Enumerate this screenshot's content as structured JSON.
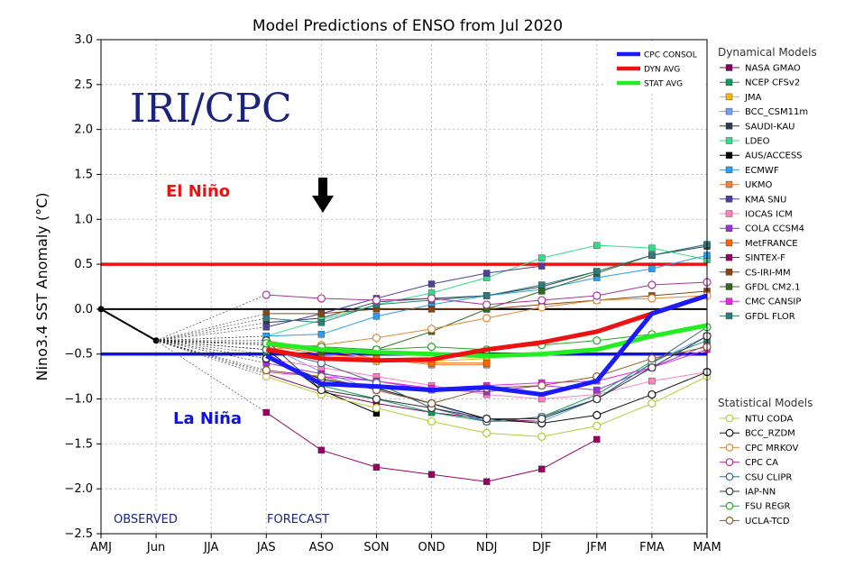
{
  "chart_data": {
    "type": "line",
    "title": "Model Predictions of ENSO from Jul 2020",
    "ylabel": "Nino3.4 SST Anomaly (°C)",
    "xlabel": "",
    "ylim": [
      -2.5,
      3.0
    ],
    "yticks": [
      -2.5,
      -2.0,
      -1.5,
      -1.0,
      -0.5,
      0.0,
      0.5,
      1.0,
      1.5,
      2.0,
      2.5,
      3.0
    ],
    "yticklabels": [
      "−2.5",
      "−2.0",
      "−1.5",
      "−1.0",
      "−0.5",
      "0.0",
      "0.5",
      "1.0",
      "1.5",
      "2.0",
      "2.5",
      "3.0"
    ],
    "categories": [
      "AMJ",
      "Jun",
      "JJA",
      "JAS",
      "ASO",
      "SON",
      "OND",
      "NDJ",
      "DJF",
      "JFM",
      "FMA",
      "MAM"
    ],
    "grid": true,
    "observed": {
      "x": [
        0,
        1
      ],
      "y": [
        0.0,
        -0.35
      ]
    },
    "reference_lines": [
      {
        "name": "el-nino-threshold",
        "y": 0.5,
        "color": "#ee1111"
      },
      {
        "name": "zero-line",
        "y": 0.0,
        "color": "#000000"
      },
      {
        "name": "la-nina-threshold",
        "y": -0.5,
        "color": "#1111dd"
      }
    ],
    "annotations": {
      "logo": "IRI/CPC",
      "el_nino": "El Niño",
      "la_nina": "La Niña",
      "observed": "OBSERVED",
      "forecast": "FORECAST",
      "arrow_at": 4
    },
    "key_series": [
      {
        "name": "CPC CONSOL",
        "color": "#1a1aff",
        "values": [
          -0.52,
          -0.83,
          -0.86,
          -0.9,
          -0.87,
          -0.95,
          -0.8,
          -0.05,
          0.15
        ]
      },
      {
        "name": "DYN AVG",
        "color": "#ee1111",
        "values": [
          -0.45,
          -0.55,
          -0.57,
          -0.56,
          -0.45,
          -0.37,
          -0.25,
          -0.05,
          0.15
        ]
      },
      {
        "name": "STAT AVG",
        "color": "#22ee22",
        "values": [
          -0.38,
          -0.45,
          -0.48,
          -0.5,
          -0.52,
          -0.5,
          -0.45,
          -0.3,
          -0.18
        ]
      }
    ],
    "dynamical_header": "Dynamical Models",
    "dynamical_models": [
      {
        "name": "NASA GMAO",
        "color": "#800060",
        "values": [
          -0.72,
          -0.92,
          -1.05,
          -1.15,
          -1.22,
          -1.25,
          null,
          null,
          null
        ]
      },
      {
        "name": "NCEP CFSv2",
        "color": "#0c9c5c",
        "values": [
          -0.5,
          -0.85,
          -1.0,
          -1.15,
          -1.25,
          -1.2,
          -0.95,
          -0.58,
          -0.35
        ]
      },
      {
        "name": "JMA",
        "color": "#f5b800",
        "values": [
          -0.45,
          -0.55,
          -0.58,
          -0.58,
          -0.55,
          null,
          null,
          null,
          null
        ]
      },
      {
        "name": "BCC_CSM11m",
        "color": "#6ea0ff",
        "values": [
          -0.4,
          -0.7,
          -0.9,
          -1.05,
          -1.25,
          -1.25,
          -1.0,
          -0.6,
          -0.3
        ]
      },
      {
        "name": "SAUDI-KAU",
        "color": "#2a3f55",
        "values": [
          -0.15,
          -0.1,
          0.08,
          0.12,
          0.15,
          0.25,
          0.42,
          0.6,
          0.7
        ]
      },
      {
        "name": "LDEO",
        "color": "#33dd88",
        "values": [
          -0.3,
          -0.12,
          0.05,
          0.18,
          0.35,
          0.57,
          0.71,
          0.68,
          0.55
        ]
      },
      {
        "name": "AUS/ACCESS",
        "color": "#000000",
        "values": [
          -0.45,
          -0.9,
          -1.16,
          null,
          null,
          null,
          null,
          null,
          null
        ]
      },
      {
        "name": "ECMWF",
        "color": "#2a9df4",
        "values": [
          -0.3,
          -0.28,
          -0.08,
          0.05,
          0.15,
          0.22,
          0.35,
          0.45,
          0.6
        ]
      },
      {
        "name": "UKMO",
        "color": "#f08040",
        "values": [
          -0.35,
          -0.45,
          -0.55,
          -0.62,
          -0.62,
          null,
          null,
          null,
          null
        ]
      },
      {
        "name": "KMA SNU",
        "color": "#4e3d99",
        "values": [
          -0.2,
          -0.05,
          0.12,
          0.28,
          0.4,
          0.48,
          null,
          null,
          null
        ]
      },
      {
        "name": "IOCAS ICM",
        "color": "#ff7fbf",
        "values": [
          -0.55,
          -0.65,
          -0.75,
          -0.85,
          -0.95,
          -1.0,
          -0.95,
          -0.8,
          -0.7
        ]
      },
      {
        "name": "COLA CCSM4",
        "color": "#9933dd",
        "values": [
          -0.6,
          -0.72,
          -0.8,
          -0.9,
          -0.92,
          -0.85,
          -0.9,
          -0.65,
          -0.4
        ]
      },
      {
        "name": "MetFRANCE",
        "color": "#ff6600",
        "values": [
          -0.4,
          -0.5,
          -0.55,
          -0.6,
          -0.6,
          null,
          null,
          null,
          null
        ]
      },
      {
        "name": "SINTEX-F",
        "color": "#990066",
        "values": [
          -1.15,
          -1.57,
          -1.76,
          -1.84,
          -1.92,
          -1.78,
          -1.45,
          null,
          null
        ]
      },
      {
        "name": "CS-IRI-MM",
        "color": "#8b4513",
        "values": [
          -0.05,
          -0.05,
          0.0,
          0.0,
          0.0,
          0.05,
          0.1,
          0.15,
          0.2
        ]
      },
      {
        "name": "GFDL CM2.1",
        "color": "#2d6a1e",
        "values": [
          -0.38,
          -0.48,
          -0.45,
          -0.25,
          0.0,
          0.2,
          0.4,
          0.6,
          0.72
        ]
      },
      {
        "name": "CMC CANSIP",
        "color": "#ee22ee",
        "values": [
          -0.7,
          -0.75,
          -0.8,
          -0.88,
          -0.85,
          -0.82,
          -0.8,
          -0.65,
          -0.45
        ]
      },
      {
        "name": "GFDL FLOR",
        "color": "#2e7d7d",
        "values": [
          -0.1,
          -0.15,
          0.05,
          0.1,
          0.15,
          0.27,
          0.42,
          0.6,
          0.72
        ]
      }
    ],
    "statistical_header": "Statistical Models",
    "statistical_models": [
      {
        "name": "NTU CODA",
        "color": "#b5cc33",
        "values": [
          -0.75,
          -0.95,
          -1.1,
          -1.25,
          -1.38,
          -1.42,
          -1.3,
          -1.05,
          -0.75
        ]
      },
      {
        "name": "BCC_RZDM",
        "color": "#111111",
        "values": [
          -0.55,
          -0.78,
          -0.88,
          -1.05,
          -1.22,
          -1.27,
          -1.18,
          -0.95,
          -0.7
        ]
      },
      {
        "name": "CPC MRKOV",
        "color": "#e08a33",
        "values": [
          -0.45,
          -0.4,
          -0.32,
          -0.22,
          -0.1,
          0.02,
          0.1,
          0.12,
          0.15
        ]
      },
      {
        "name": "CPC CA",
        "color": "#aa3399",
        "values": [
          0.16,
          0.12,
          0.1,
          0.12,
          0.05,
          0.1,
          0.15,
          0.27,
          0.3
        ]
      },
      {
        "name": "CSU CLIPR",
        "color": "#3a6a88",
        "values": [
          -0.45,
          -0.6,
          -0.82,
          -1.1,
          -1.25,
          -1.2,
          -1.0,
          -0.6,
          -0.2
        ]
      },
      {
        "name": "IAP-NN",
        "color": "#333333",
        "values": [
          -0.35,
          -0.9,
          -1.0,
          -1.1,
          -1.22,
          -1.22,
          -1.0,
          -0.65,
          -0.3
        ]
      },
      {
        "name": "FSU REGR",
        "color": "#22aa22",
        "values": [
          -0.38,
          -0.42,
          -0.45,
          -0.42,
          -0.45,
          -0.4,
          -0.35,
          -0.28,
          -0.2
        ]
      },
      {
        "name": "UCLA-TCD",
        "color": "#8b5a2b",
        "values": [
          -0.68,
          -0.75,
          -0.9,
          -1.05,
          -0.88,
          -0.85,
          -0.75,
          -0.55,
          -0.42
        ]
      }
    ]
  }
}
